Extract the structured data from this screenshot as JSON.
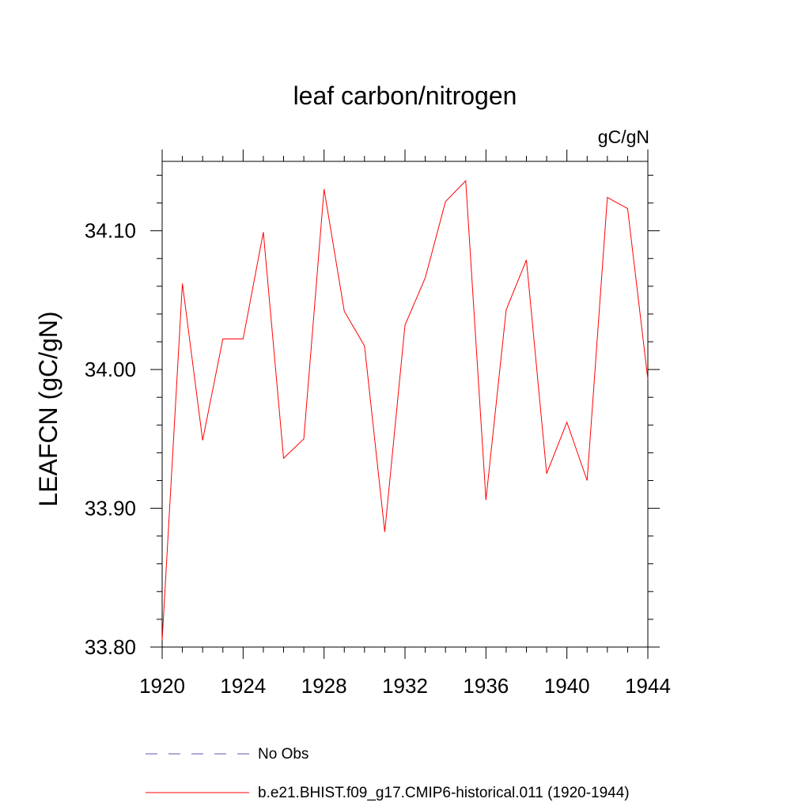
{
  "chart_data": {
    "type": "line",
    "title": "leaf carbon/nitrogen",
    "units_label": "gC/gN",
    "ylabel": "LEAFCN  (gC/gN)",
    "xlabel": "",
    "xlim": [
      1920,
      1944
    ],
    "ylim": [
      33.8,
      34.15
    ],
    "x_ticks": [
      1920,
      1924,
      1928,
      1932,
      1936,
      1940,
      1944
    ],
    "x_tick_labels": [
      "1920",
      "1924",
      "1928",
      "1932",
      "1936",
      "1940",
      "1944"
    ],
    "y_ticks": [
      33.8,
      33.9,
      34.0,
      34.1
    ],
    "y_tick_labels": [
      "33.80",
      "33.90",
      "34.00",
      "34.10"
    ],
    "grid": false,
    "legend_placement": "bottom",
    "legend": [
      {
        "label": "No Obs",
        "style": "dashed",
        "color": "#5a5ab4"
      },
      {
        "label": "b.e21.BHIST.f09_g17.CMIP6-historical.011 (1920-1944)",
        "style": "solid",
        "color": "#ff0000"
      }
    ],
    "series": [
      {
        "name": "b.e21.BHIST.f09_g17.CMIP6-historical.011 (1920-1944)",
        "color": "#ff0000",
        "x": [
          1920,
          1921,
          1922,
          1923,
          1924,
          1925,
          1926,
          1927,
          1928,
          1929,
          1930,
          1931,
          1932,
          1933,
          1934,
          1935,
          1936,
          1937,
          1938,
          1939,
          1940,
          1941,
          1942,
          1943,
          1944
        ],
        "y": [
          33.805,
          34.062,
          33.949,
          34.022,
          34.022,
          34.099,
          33.936,
          33.95,
          34.13,
          34.042,
          34.017,
          33.883,
          34.032,
          34.066,
          34.121,
          34.136,
          33.906,
          34.043,
          34.079,
          33.925,
          33.962,
          33.92,
          34.124,
          34.116,
          33.993
        ]
      }
    ]
  }
}
